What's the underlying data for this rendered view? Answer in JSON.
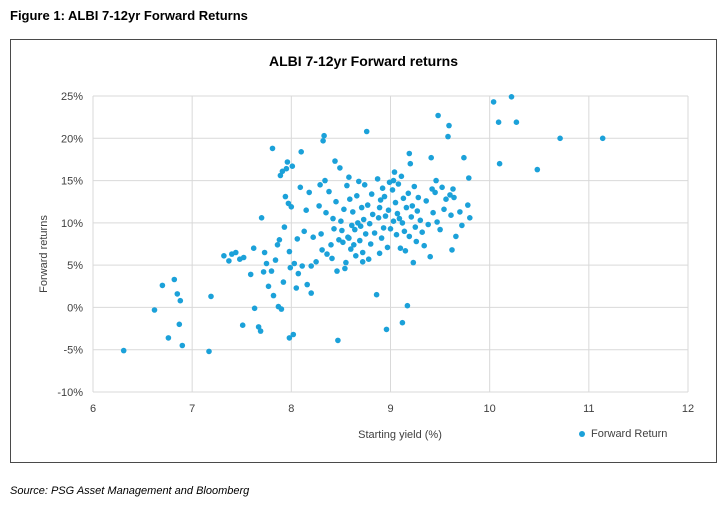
{
  "figure_title": "Figure 1: ALBI 7-12yr Forward Returns",
  "source": "Source: PSG Asset Management and Bloomberg",
  "colors": {
    "marker": "#1ba1d9",
    "grid": "#d9d9d9",
    "text": "#404040"
  },
  "chart_data": {
    "type": "scatter",
    "title": "ALBI 7-12yr Forward returns",
    "xlabel": "Starting yield (%)",
    "ylabel": "Forward returns",
    "xlim": [
      6,
      12
    ],
    "ylim": [
      -10,
      25
    ],
    "x_ticks": [
      6,
      7,
      8,
      9,
      10,
      11,
      12
    ],
    "x_tick_labels": [
      "6",
      "7",
      "8",
      "9",
      "10",
      "11",
      "12"
    ],
    "y_ticks": [
      -10,
      -5,
      0,
      5,
      10,
      15,
      20,
      25
    ],
    "y_tick_labels": [
      "-10%",
      "-5%",
      "0%",
      "5%",
      "10%",
      "15%",
      "20%",
      "25%"
    ],
    "grid": true,
    "legend_position": "bottom-right",
    "series": [
      {
        "name": "Forward Return",
        "points": [
          [
            6.31,
            -5.1
          ],
          [
            6.62,
            -0.3
          ],
          [
            6.7,
            2.6
          ],
          [
            6.76,
            -3.6
          ],
          [
            6.82,
            3.3
          ],
          [
            6.85,
            1.6
          ],
          [
            6.87,
            -2.0
          ],
          [
            6.88,
            0.8
          ],
          [
            6.9,
            -4.5
          ],
          [
            7.17,
            -5.2
          ],
          [
            7.19,
            1.3
          ],
          [
            7.32,
            6.1
          ],
          [
            7.37,
            5.5
          ],
          [
            7.4,
            6.3
          ],
          [
            7.44,
            6.5
          ],
          [
            7.48,
            5.7
          ],
          [
            7.52,
            5.9
          ],
          [
            7.51,
            -2.1
          ],
          [
            7.59,
            3.9
          ],
          [
            7.62,
            7.0
          ],
          [
            7.63,
            -0.1
          ],
          [
            7.67,
            -2.3
          ],
          [
            7.69,
            -2.8
          ],
          [
            7.7,
            10.6
          ],
          [
            7.72,
            4.2
          ],
          [
            7.73,
            6.5
          ],
          [
            7.75,
            5.2
          ],
          [
            7.77,
            2.5
          ],
          [
            7.8,
            4.3
          ],
          [
            7.81,
            18.8
          ],
          [
            7.82,
            1.4
          ],
          [
            7.84,
            5.6
          ],
          [
            7.86,
            7.4
          ],
          [
            7.87,
            0.1
          ],
          [
            7.88,
            8.0
          ],
          [
            7.89,
            15.6
          ],
          [
            7.9,
            -0.2
          ],
          [
            7.91,
            16.1
          ],
          [
            7.92,
            3.0
          ],
          [
            7.93,
            9.5
          ],
          [
            7.94,
            13.1
          ],
          [
            7.95,
            16.4
          ],
          [
            7.96,
            17.2
          ],
          [
            7.97,
            12.3
          ],
          [
            7.98,
            -3.6
          ],
          [
            7.99,
            4.7
          ],
          [
            8.0,
            11.9
          ],
          [
            8.01,
            16.7
          ],
          [
            8.02,
            -3.2
          ],
          [
            8.03,
            5.2
          ],
          [
            8.05,
            2.3
          ],
          [
            8.06,
            8.1
          ],
          [
            8.07,
            4.0
          ],
          [
            8.09,
            14.2
          ],
          [
            8.1,
            18.4
          ],
          [
            8.11,
            4.9
          ],
          [
            8.13,
            9.0
          ],
          [
            8.15,
            11.5
          ],
          [
            8.16,
            2.7
          ],
          [
            8.18,
            13.6
          ],
          [
            8.2,
            1.7
          ],
          [
            8.2,
            4.9
          ],
          [
            8.22,
            8.3
          ],
          [
            8.25,
            5.4
          ],
          [
            8.28,
            12.0
          ],
          [
            8.29,
            14.5
          ],
          [
            8.3,
            8.7
          ],
          [
            8.31,
            6.8
          ],
          [
            8.32,
            19.7
          ],
          [
            8.33,
            20.3
          ],
          [
            8.34,
            15.0
          ],
          [
            8.35,
            11.2
          ],
          [
            8.36,
            6.3
          ],
          [
            8.38,
            13.7
          ],
          [
            8.4,
            7.4
          ],
          [
            8.41,
            5.8
          ],
          [
            8.42,
            10.5
          ],
          [
            8.43,
            9.3
          ],
          [
            8.44,
            17.3
          ],
          [
            8.45,
            12.5
          ],
          [
            8.46,
            4.3
          ],
          [
            8.47,
            -3.9
          ],
          [
            8.48,
            8.0
          ],
          [
            8.49,
            16.5
          ],
          [
            8.5,
            10.2
          ],
          [
            8.51,
            9.1
          ],
          [
            8.52,
            7.7
          ],
          [
            8.53,
            11.6
          ],
          [
            8.54,
            4.6
          ],
          [
            8.55,
            5.3
          ],
          [
            8.56,
            14.4
          ],
          [
            8.57,
            8.3
          ],
          [
            8.58,
            15.4
          ],
          [
            8.59,
            12.8
          ],
          [
            8.6,
            6.9
          ],
          [
            8.61,
            9.7
          ],
          [
            8.62,
            11.3
          ],
          [
            8.63,
            7.4
          ],
          [
            8.64,
            9.2
          ],
          [
            8.65,
            6.1
          ],
          [
            8.66,
            13.2
          ],
          [
            8.67,
            10.0
          ],
          [
            8.68,
            14.9
          ],
          [
            8.69,
            7.9
          ],
          [
            8.7,
            9.6
          ],
          [
            8.71,
            11.8
          ],
          [
            8.72,
            6.5
          ],
          [
            8.73,
            10.4
          ],
          [
            8.74,
            14.5
          ],
          [
            8.75,
            8.7
          ],
          [
            8.76,
            20.8
          ],
          [
            8.77,
            12.1
          ],
          [
            8.78,
            5.7
          ],
          [
            8.79,
            9.9
          ],
          [
            8.8,
            7.5
          ],
          [
            8.81,
            13.4
          ],
          [
            8.82,
            11.0
          ],
          [
            8.84,
            8.8
          ],
          [
            8.86,
            1.5
          ],
          [
            8.87,
            15.2
          ],
          [
            8.88,
            10.6
          ],
          [
            8.89,
            6.4
          ],
          [
            8.9,
            12.7
          ],
          [
            8.91,
            8.2
          ],
          [
            8.92,
            14.1
          ],
          [
            8.93,
            9.4
          ],
          [
            8.94,
            13.1
          ],
          [
            8.95,
            10.8
          ],
          [
            8.96,
            -2.6
          ],
          [
            8.97,
            7.1
          ],
          [
            8.98,
            11.5
          ],
          [
            8.99,
            14.8
          ],
          [
            9.0,
            9.3
          ],
          [
            9.02,
            13.9
          ],
          [
            9.03,
            10.2
          ],
          [
            9.04,
            16.0
          ],
          [
            9.05,
            12.4
          ],
          [
            9.06,
            8.6
          ],
          [
            9.07,
            11.1
          ],
          [
            9.08,
            14.6
          ],
          [
            9.09,
            10.5
          ],
          [
            9.1,
            7.0
          ],
          [
            9.11,
            15.5
          ],
          [
            9.12,
            -1.8
          ],
          [
            9.13,
            12.9
          ],
          [
            9.14,
            9.0
          ],
          [
            9.15,
            6.7
          ],
          [
            9.16,
            11.8
          ],
          [
            9.17,
            0.2
          ],
          [
            9.18,
            13.5
          ],
          [
            9.19,
            8.4
          ],
          [
            9.2,
            17.0
          ],
          [
            9.21,
            10.7
          ],
          [
            9.22,
            12.0
          ],
          [
            9.23,
            5.3
          ],
          [
            9.24,
            14.3
          ],
          [
            9.25,
            9.5
          ],
          [
            9.26,
            7.8
          ],
          [
            9.27,
            11.4
          ],
          [
            9.28,
            13.0
          ],
          [
            9.3,
            10.3
          ],
          [
            9.32,
            8.9
          ],
          [
            9.34,
            7.3
          ],
          [
            9.36,
            12.6
          ],
          [
            9.38,
            9.8
          ],
          [
            9.4,
            6.0
          ],
          [
            9.41,
            17.7
          ],
          [
            9.42,
            14.0
          ],
          [
            9.43,
            11.2
          ],
          [
            9.45,
            13.6
          ],
          [
            9.46,
            15.0
          ],
          [
            9.47,
            10.1
          ],
          [
            9.48,
            22.7
          ],
          [
            9.5,
            9.2
          ],
          [
            9.52,
            14.2
          ],
          [
            9.54,
            11.6
          ],
          [
            9.56,
            12.8
          ],
          [
            9.58,
            20.2
          ],
          [
            9.59,
            21.5
          ],
          [
            9.6,
            13.3
          ],
          [
            9.61,
            10.9
          ],
          [
            9.62,
            6.8
          ],
          [
            9.63,
            14.0
          ],
          [
            9.64,
            13.0
          ],
          [
            9.66,
            8.4
          ],
          [
            9.7,
            11.3
          ],
          [
            9.72,
            9.7
          ],
          [
            9.74,
            17.7
          ],
          [
            9.78,
            12.1
          ],
          [
            9.79,
            15.3
          ],
          [
            9.8,
            10.6
          ],
          [
            10.04,
            24.3
          ],
          [
            10.09,
            21.9
          ],
          [
            10.1,
            17.0
          ],
          [
            10.22,
            24.9
          ],
          [
            10.27,
            21.9
          ],
          [
            10.48,
            16.3
          ],
          [
            10.71,
            20.0
          ],
          [
            11.14,
            20.0
          ],
          [
            9.03,
            15.0
          ],
          [
            9.12,
            10.0
          ],
          [
            8.89,
            11.8
          ],
          [
            9.19,
            18.2
          ],
          [
            8.72,
            5.4
          ],
          [
            8.58,
            8.2
          ],
          [
            7.98,
            6.6
          ]
        ]
      }
    ]
  }
}
